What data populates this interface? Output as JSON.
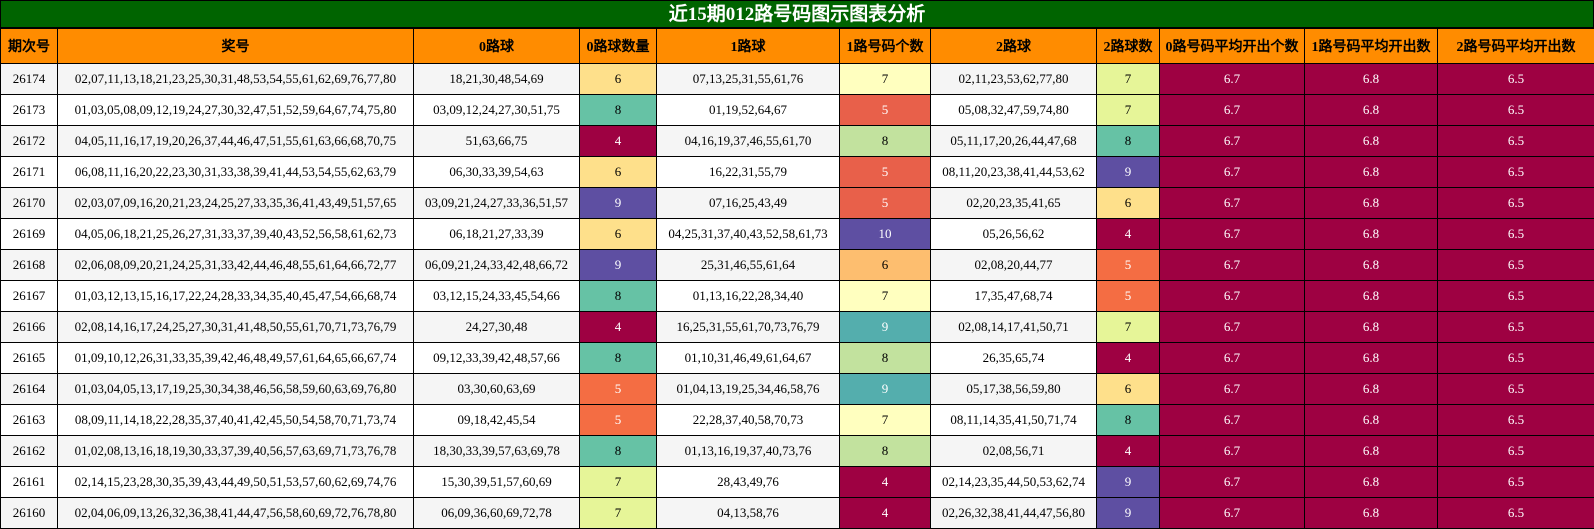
{
  "title": "近15期012路号码图示图表分析",
  "headers": [
    "期次号",
    "奖号",
    "0路球",
    "0路球数量",
    "1路球",
    "1路号码个数",
    "2路球",
    "2路球数",
    "0路号码平均开出个数",
    "1路号码平均开出数",
    "2路号码平均开出数"
  ],
  "colors": {
    "4": "#9E0142",
    "5": "#F46D43",
    "6": "#FEE08B",
    "7": "#E6F598",
    "8": "#66C2A5",
    "9": "#5E4FA2",
    "10": "#5E4FA2",
    "avg": "#9E0142"
  },
  "rows": [
    {
      "issue": "26174",
      "numbers": "02,07,11,13,18,21,23,25,30,31,48,53,54,55,61,62,69,76,77,80",
      "r0": "18,21,30,48,54,69",
      "c0": "6",
      "r1": "07,13,25,31,55,61,76",
      "c1": "7",
      "r2": "02,11,23,53,62,77,80",
      "c2": "7",
      "avg0": "6.7",
      "avg1": "6.8",
      "avg2": "6.5",
      "bg0": "#FEE08B",
      "bg1": "#FFFFBF",
      "bg2": "#E6F598"
    },
    {
      "issue": "26173",
      "numbers": "01,03,05,08,09,12,19,24,27,30,32,47,51,52,59,64,67,74,75,80",
      "r0": "03,09,12,24,27,30,51,75",
      "c0": "8",
      "r1": "01,19,52,64,67",
      "c1": "5",
      "r2": "05,08,32,47,59,74,80",
      "c2": "7",
      "avg0": "6.7",
      "avg1": "6.8",
      "avg2": "6.5",
      "bg0": "#66C2A5",
      "bg1": "#E8604A",
      "bg2": "#E6F598"
    },
    {
      "issue": "26172",
      "numbers": "04,05,11,16,17,19,20,26,37,44,46,47,51,55,61,63,66,68,70,75",
      "r0": "51,63,66,75",
      "c0": "4",
      "r1": "04,16,19,37,46,55,61,70",
      "c1": "8",
      "r2": "05,11,17,20,26,44,47,68",
      "c2": "8",
      "avg0": "6.7",
      "avg1": "6.8",
      "avg2": "6.5",
      "bg0": "#9E0142",
      "bg1": "#C2E29E",
      "bg2": "#66C2A5"
    },
    {
      "issue": "26171",
      "numbers": "06,08,11,16,20,22,23,30,31,33,38,39,41,44,53,54,55,62,63,79",
      "r0": "06,30,33,39,54,63",
      "c0": "6",
      "r1": "16,22,31,55,79",
      "c1": "5",
      "r2": "08,11,20,23,38,41,44,53,62",
      "c2": "9",
      "avg0": "6.7",
      "avg1": "6.8",
      "avg2": "6.5",
      "bg0": "#FEE08B",
      "bg1": "#E8604A",
      "bg2": "#5E4FA2"
    },
    {
      "issue": "26170",
      "numbers": "02,03,07,09,16,20,21,23,24,25,27,33,35,36,41,43,49,51,57,65",
      "r0": "03,09,21,24,27,33,36,51,57",
      "c0": "9",
      "r1": "07,16,25,43,49",
      "c1": "5",
      "r2": "02,20,23,35,41,65",
      "c2": "6",
      "avg0": "6.7",
      "avg1": "6.8",
      "avg2": "6.5",
      "bg0": "#5E4FA2",
      "bg1": "#E8604A",
      "bg2": "#FEE08B"
    },
    {
      "issue": "26169",
      "numbers": "04,05,06,18,21,25,26,27,31,33,37,39,40,43,52,56,58,61,62,73",
      "r0": "06,18,21,27,33,39",
      "c0": "6",
      "r1": "04,25,31,37,40,43,52,58,61,73",
      "c1": "10",
      "r2": "05,26,56,62",
      "c2": "4",
      "avg0": "6.7",
      "avg1": "6.8",
      "avg2": "6.5",
      "bg0": "#FEE08B",
      "bg1": "#5E4FA2",
      "bg2": "#9E0142"
    },
    {
      "issue": "26168",
      "numbers": "02,06,08,09,20,21,24,25,31,33,42,44,46,48,55,61,64,66,72,77",
      "r0": "06,09,21,24,33,42,48,66,72",
      "c0": "9",
      "r1": "25,31,46,55,61,64",
      "c1": "6",
      "r2": "02,08,20,44,77",
      "c2": "5",
      "avg0": "6.7",
      "avg1": "6.8",
      "avg2": "6.5",
      "bg0": "#5E4FA2",
      "bg1": "#FDBE6F",
      "bg2": "#F46D43"
    },
    {
      "issue": "26167",
      "numbers": "01,03,12,13,15,16,17,22,24,28,33,34,35,40,45,47,54,66,68,74",
      "r0": "03,12,15,24,33,45,54,66",
      "c0": "8",
      "r1": "01,13,16,22,28,34,40",
      "c1": "7",
      "r2": "17,35,47,68,74",
      "c2": "5",
      "avg0": "6.7",
      "avg1": "6.8",
      "avg2": "6.5",
      "bg0": "#66C2A5",
      "bg1": "#FFFFBF",
      "bg2": "#F46D43"
    },
    {
      "issue": "26166",
      "numbers": "02,08,14,16,17,24,25,27,30,31,41,48,50,55,61,70,71,73,76,79",
      "r0": "24,27,30,48",
      "c0": "4",
      "r1": "16,25,31,55,61,70,73,76,79",
      "c1": "9",
      "r2": "02,08,14,17,41,50,71",
      "c2": "7",
      "avg0": "6.7",
      "avg1": "6.8",
      "avg2": "6.5",
      "bg0": "#9E0142",
      "bg1": "#54AEAD",
      "bg2": "#E6F598"
    },
    {
      "issue": "26165",
      "numbers": "01,09,10,12,26,31,33,35,39,42,46,48,49,57,61,64,65,66,67,74",
      "r0": "09,12,33,39,42,48,57,66",
      "c0": "8",
      "r1": "01,10,31,46,49,61,64,67",
      "c1": "8",
      "r2": "26,35,65,74",
      "c2": "4",
      "avg0": "6.7",
      "avg1": "6.8",
      "avg2": "6.5",
      "bg0": "#66C2A5",
      "bg1": "#C2E29E",
      "bg2": "#9E0142"
    },
    {
      "issue": "26164",
      "numbers": "01,03,04,05,13,17,19,25,30,34,38,46,56,58,59,60,63,69,76,80",
      "r0": "03,30,60,63,69",
      "c0": "5",
      "r1": "01,04,13,19,25,34,46,58,76",
      "c1": "9",
      "r2": "05,17,38,56,59,80",
      "c2": "6",
      "avg0": "6.7",
      "avg1": "6.8",
      "avg2": "6.5",
      "bg0": "#F46D43",
      "bg1": "#54AEAD",
      "bg2": "#FEE08B"
    },
    {
      "issue": "26163",
      "numbers": "08,09,11,14,18,22,28,35,37,40,41,42,45,50,54,58,70,71,73,74",
      "r0": "09,18,42,45,54",
      "c0": "5",
      "r1": "22,28,37,40,58,70,73",
      "c1": "7",
      "r2": "08,11,14,35,41,50,71,74",
      "c2": "8",
      "avg0": "6.7",
      "avg1": "6.8",
      "avg2": "6.5",
      "bg0": "#F46D43",
      "bg1": "#FFFFBF",
      "bg2": "#66C2A5"
    },
    {
      "issue": "26162",
      "numbers": "01,02,08,13,16,18,19,30,33,37,39,40,56,57,63,69,71,73,76,78",
      "r0": "18,30,33,39,57,63,69,78",
      "c0": "8",
      "r1": "01,13,16,19,37,40,73,76",
      "c1": "8",
      "r2": "02,08,56,71",
      "c2": "4",
      "avg0": "6.7",
      "avg1": "6.8",
      "avg2": "6.5",
      "bg0": "#66C2A5",
      "bg1": "#C2E29E",
      "bg2": "#9E0142"
    },
    {
      "issue": "26161",
      "numbers": "02,14,15,23,28,30,35,39,43,44,49,50,51,53,57,60,62,69,74,76",
      "r0": "15,30,39,51,57,60,69",
      "c0": "7",
      "r1": "28,43,49,76",
      "c1": "4",
      "r2": "02,14,23,35,44,50,53,62,74",
      "c2": "9",
      "avg0": "6.7",
      "avg1": "6.8",
      "avg2": "6.5",
      "bg0": "#E6F598",
      "bg1": "#9E0142",
      "bg2": "#5E4FA2"
    },
    {
      "issue": "26160",
      "numbers": "02,04,06,09,13,26,32,36,38,41,44,47,56,58,60,69,72,76,78,80",
      "r0": "06,09,36,60,69,72,78",
      "c0": "7",
      "r1": "04,13,58,76",
      "c1": "4",
      "r2": "02,26,32,38,41,44,47,56,80",
      "c2": "9",
      "avg0": "6.7",
      "avg1": "6.8",
      "avg2": "6.5",
      "bg0": "#E6F598",
      "bg1": "#9E0142",
      "bg2": "#5E4FA2"
    }
  ]
}
